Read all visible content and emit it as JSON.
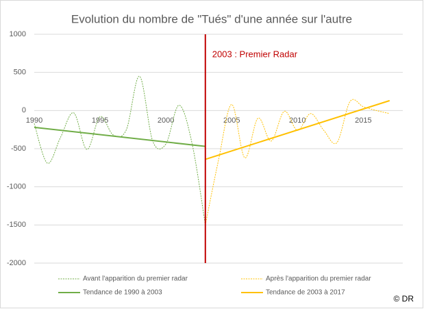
{
  "chart_data": {
    "type": "line",
    "title": "Evolution du nombre de \"Tués\" d'une année sur l'autre",
    "annotation": "2003 : Premier Radar",
    "credit": "© DR",
    "vline": {
      "x": 2003,
      "color": "#c00000"
    },
    "xlim": [
      1990,
      2018
    ],
    "xticks": [
      1990,
      1995,
      2000,
      2005,
      2010,
      2015
    ],
    "ylim": [
      -2000,
      1000
    ],
    "yticks": [
      -2000,
      -1500,
      -1000,
      -500,
      0,
      500,
      1000
    ],
    "grid": true,
    "legend": "bottom",
    "series": [
      {
        "name": "Avant l'apparition du premier radar",
        "color": "#70ad47",
        "style": "dotted",
        "smooth": true,
        "x": [
          1990,
          1991,
          1992,
          1993,
          1994,
          1995,
          1996,
          1997,
          1998,
          1999,
          2000,
          2001,
          2002,
          2003
        ],
        "values": [
          -170,
          -690,
          -350,
          -30,
          -510,
          -80,
          -320,
          -250,
          450,
          -400,
          -440,
          70,
          -440,
          -1500
        ]
      },
      {
        "name": "Après l'apparition du premier radar",
        "color": "#ffc000",
        "style": "dotted",
        "smooth": true,
        "x": [
          2003,
          2004,
          2005,
          2006,
          2007,
          2008,
          2009,
          2010,
          2011,
          2012,
          2013,
          2014,
          2015,
          2016,
          2017
        ],
        "values": [
          -1500,
          -650,
          80,
          -620,
          -100,
          -400,
          -10,
          -260,
          -40,
          -260,
          -420,
          120,
          50,
          0,
          -40
        ]
      },
      {
        "name": "Tendance de 1990 à 2003",
        "color": "#70ad47",
        "style": "solid",
        "smooth": false,
        "x": [
          1990,
          2003
        ],
        "values": [
          -220,
          -470
        ]
      },
      {
        "name": "Tendance de 2003 à 2017",
        "color": "#ffc000",
        "style": "solid",
        "smooth": false,
        "x": [
          2003,
          2017
        ],
        "values": [
          -640,
          130
        ]
      }
    ]
  }
}
